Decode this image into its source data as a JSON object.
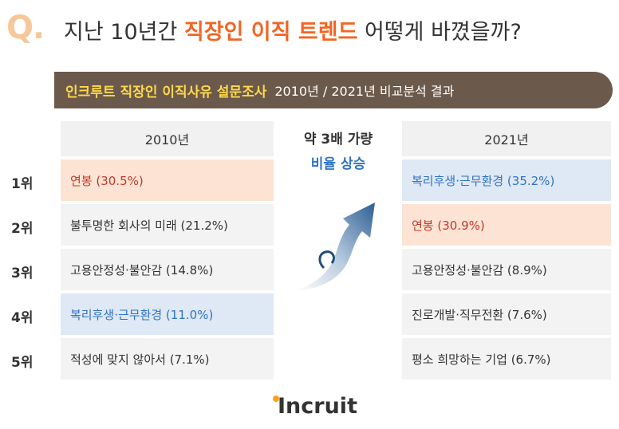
{
  "header": {
    "q_mark": "Q.",
    "title_before": "지난 10년간 ",
    "title_highlight": "직장인 이직 트렌드",
    "title_after": " 어떻게 바꼈을까?"
  },
  "banner": {
    "main": "인크루트 직장인 이직사유 설문조사",
    "sub": "2010년 / 2021년 비교분석 결과"
  },
  "ranks": [
    "1위",
    "2위",
    "3위",
    "4위",
    "5위"
  ],
  "year_2010": {
    "header": "2010년",
    "items": [
      "연봉 (30.5%)",
      "불투명한 회사의 미래 (21.2%)",
      "고용안정성·불안감 (14.8%)",
      "복리후생·근무환경 (11.0%)",
      "적성에 맞지 않아서 (7.1%)"
    ]
  },
  "year_2021": {
    "header": "2021년",
    "items": [
      "복리후생·근무환경 (35.2%)",
      "연봉 (30.9%)",
      "고용안정성·불안감 (8.9%)",
      "진로개발·직무전환 (7.6%)",
      "평소 희망하는 기업 (6.7%)"
    ]
  },
  "middle": {
    "line1": "약 3배 가량",
    "line2": "비율 상승"
  },
  "logo": {
    "text": "Incruit"
  },
  "colors": {
    "accent": "#f26522",
    "banner": "#6b5a4b",
    "highlight_red": "#fde3d4",
    "highlight_blue": "#dfe8f5"
  }
}
